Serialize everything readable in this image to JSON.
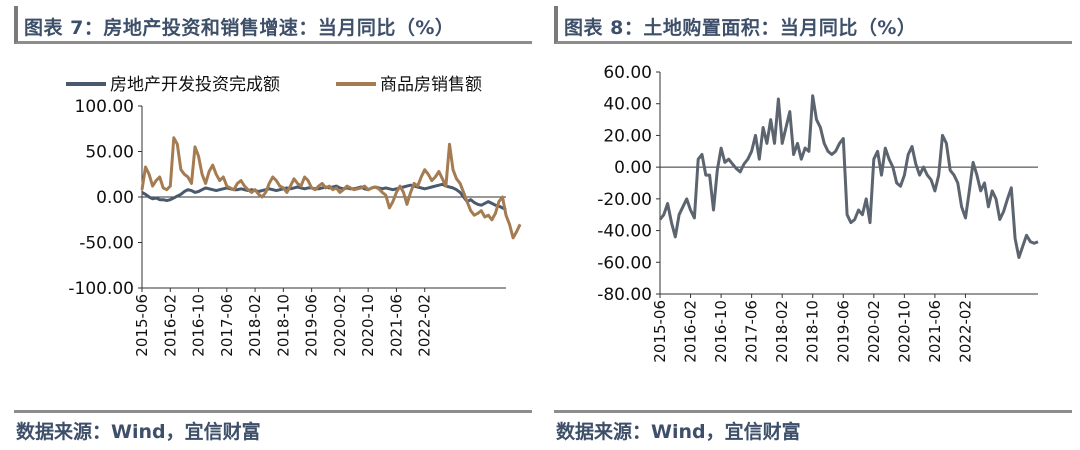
{
  "left": {
    "title": "图表 7：房地产投资和销售增速：当月同比（%）",
    "source": "数据来源：Wind，宜信财富"
  },
  "right": {
    "title": "图表 8：土地购置面积：当月同比（%）",
    "source": "数据来源：Wind，宜信财富"
  },
  "chart_data": [
    {
      "type": "line",
      "title": "图表 7：房地产投资和销售增速：当月同比（%）",
      "xlabel": "",
      "ylabel": "",
      "ylim": [
        -100,
        100
      ],
      "y_ticks": [
        "100.00",
        "50.00",
        "0.00",
        "-50.00",
        "-100.00"
      ],
      "x_tick_labels": [
        "2015-06",
        "2016-02",
        "2016-10",
        "2017-06",
        "2018-02",
        "2018-10",
        "2019-06",
        "2020-02",
        "2020-10",
        "2021-06",
        "2022-02"
      ],
      "grid": false,
      "legend_position": "top",
      "series": [
        {
          "name": "房地产开发投资完成额",
          "color": "#4a5a6e",
          "values": [
            5,
            3,
            0,
            -2,
            -1,
            -3,
            -3,
            -4,
            -3,
            -1,
            1,
            3,
            6,
            8,
            7,
            5,
            6,
            8,
            10,
            9,
            8,
            7,
            8,
            9,
            10,
            9,
            8,
            8,
            9,
            8,
            7,
            8,
            7,
            6,
            7,
            8,
            9,
            8,
            7,
            8,
            9,
            10,
            9,
            10,
            11,
            10,
            9,
            10,
            10,
            9,
            9,
            10,
            11,
            10,
            11,
            12,
            10,
            9,
            10,
            9,
            9,
            10,
            11,
            9,
            8,
            10,
            11,
            10,
            9,
            10,
            9,
            8,
            9,
            10,
            11,
            12,
            13,
            12,
            11,
            10,
            9,
            10,
            11,
            12,
            13,
            14,
            12,
            11,
            10,
            8,
            5,
            0,
            -5,
            -3,
            -6,
            -8,
            -9,
            -7,
            -5,
            -7,
            -9,
            -10,
            -12,
            -14
          ]
        },
        {
          "name": "商品房销售额",
          "color": "#a57c52",
          "values": [
            8,
            33,
            25,
            12,
            18,
            22,
            10,
            8,
            12,
            65,
            58,
            30,
            25,
            22,
            15,
            55,
            45,
            25,
            15,
            28,
            35,
            25,
            18,
            22,
            12,
            10,
            8,
            15,
            18,
            12,
            8,
            5,
            8,
            3,
            0,
            5,
            15,
            22,
            18,
            12,
            10,
            5,
            12,
            20,
            15,
            12,
            22,
            18,
            10,
            8,
            12,
            15,
            10,
            12,
            8,
            10,
            5,
            8,
            12,
            10,
            8,
            9,
            10,
            12,
            8,
            10,
            11,
            9,
            5,
            2,
            -12,
            -5,
            5,
            12,
            5,
            -8,
            5,
            15,
            12,
            22,
            30,
            25,
            18,
            22,
            28,
            20,
            12,
            58,
            30,
            20,
            15,
            5,
            -5,
            -15,
            -20,
            -18,
            -15,
            -22,
            -20,
            -25,
            -18,
            -5,
            0,
            -20,
            -30,
            -45,
            -38,
            -30
          ]
        }
      ]
    },
    {
      "type": "line",
      "title": "图表 8：土地购置面积：当月同比（%）",
      "xlabel": "",
      "ylabel": "",
      "ylim": [
        -80,
        60
      ],
      "y_ticks": [
        "60.00",
        "40.00",
        "20.00",
        "0.00",
        "-20.00",
        "-40.00",
        "-60.00",
        "-80.00"
      ],
      "x_tick_labels": [
        "2015-06",
        "2016-02",
        "2016-10",
        "2017-06",
        "2018-02",
        "2018-10",
        "2019-06",
        "2020-02",
        "2020-10",
        "2021-06",
        "2022-02"
      ],
      "grid": false,
      "series": [
        {
          "name": "",
          "color": "#5c6470",
          "values": [
            -33,
            -30,
            -23,
            -35,
            -44,
            -30,
            -25,
            -20,
            -27,
            -32,
            5,
            8,
            -5,
            -5,
            -27,
            -2,
            12,
            3,
            5,
            2,
            -1,
            -3,
            2,
            5,
            10,
            20,
            5,
            25,
            15,
            30,
            15,
            43,
            15,
            25,
            35,
            8,
            15,
            5,
            12,
            10,
            45,
            30,
            25,
            15,
            10,
            8,
            10,
            15,
            18,
            -30,
            -35,
            -33,
            -27,
            -30,
            -20,
            -35,
            5,
            10,
            -5,
            12,
            5,
            0,
            -10,
            -12,
            -5,
            8,
            13,
            2,
            -5,
            0,
            -5,
            -8,
            -15,
            -5,
            20,
            15,
            -2,
            -5,
            -10,
            -25,
            -32,
            -15,
            3,
            -5,
            -15,
            -10,
            -25,
            -15,
            -20,
            -33,
            -28,
            -20,
            -13,
            -45,
            -57,
            -50,
            -43,
            -47,
            -48,
            -47
          ]
        }
      ]
    }
  ]
}
